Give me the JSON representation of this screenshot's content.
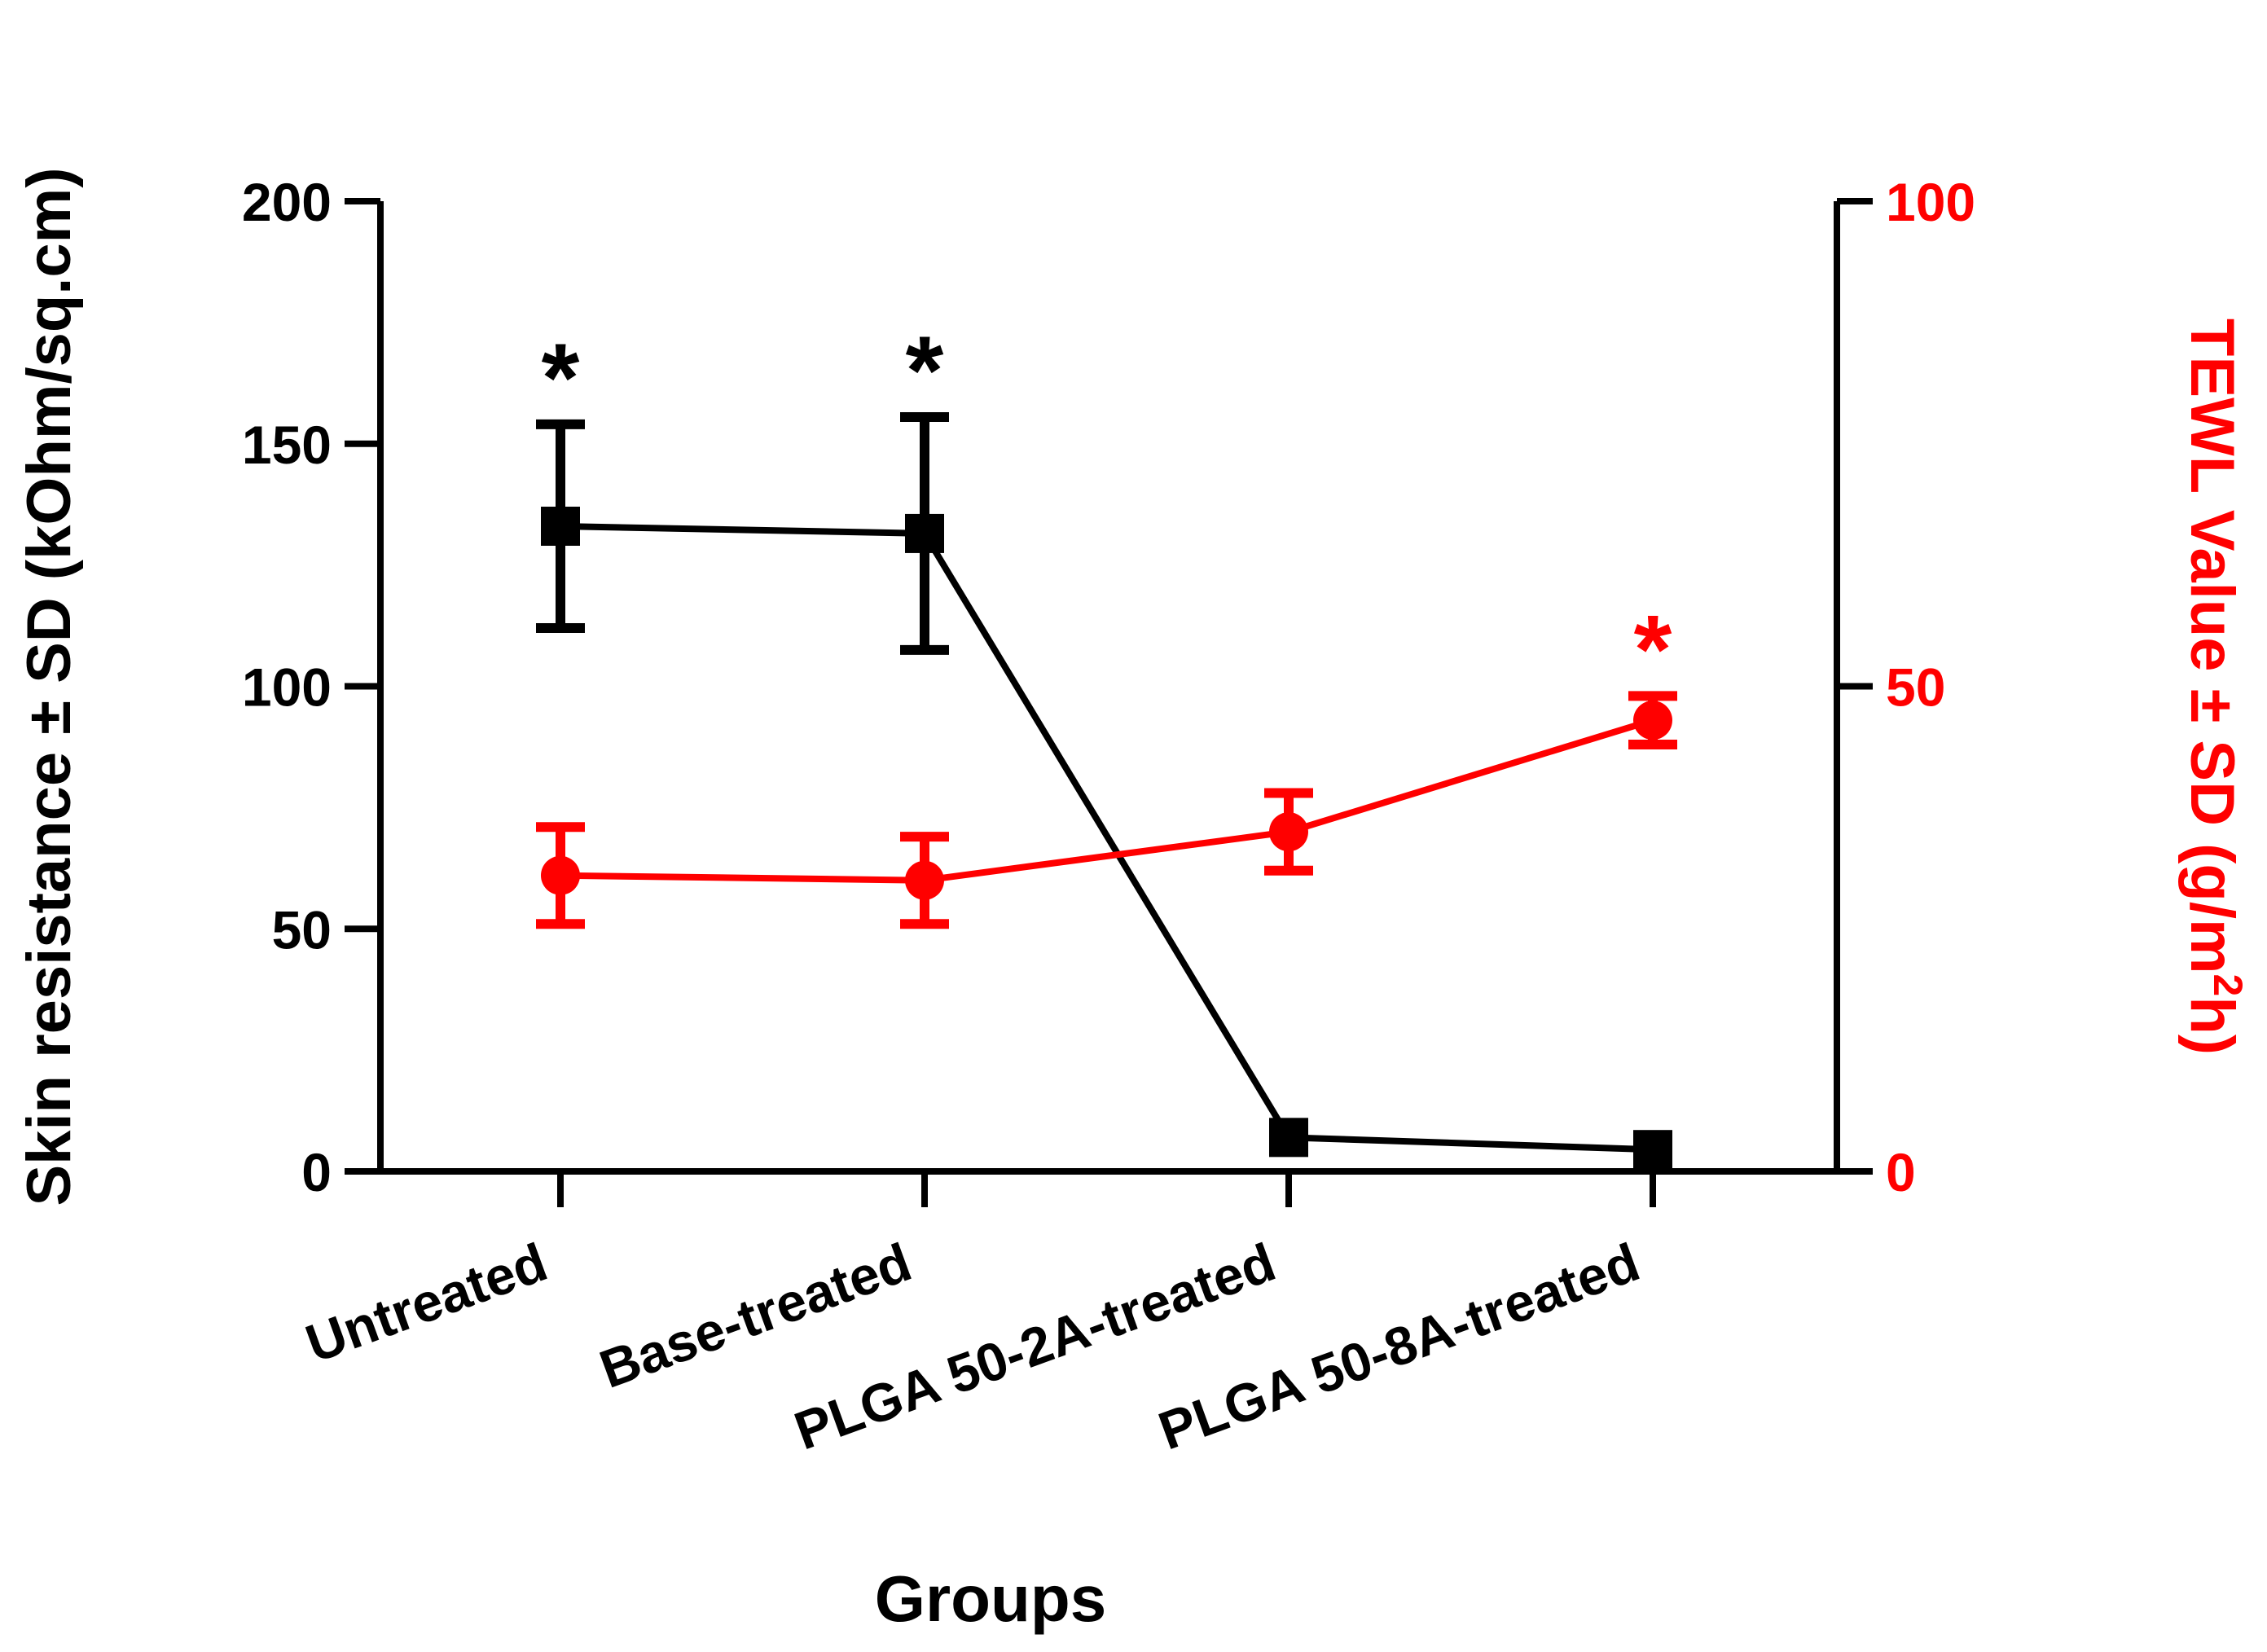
{
  "chart_data": {
    "type": "line",
    "categories": [
      "Untreated",
      "Base-treated",
      "PLGA 50-2A-treated",
      "PLGA 50-8A-treated"
    ],
    "xlabel": "Groups",
    "ylabel": "Skin resistance ± SD (kOhm/sq.cm)",
    "y2label_prefix": "TEWL Value ± SD (g/m",
    "y2label_sup": "2",
    "y2label_suffix": "h)",
    "ylim": [
      0,
      200
    ],
    "yticks": [
      "0",
      "50",
      "100",
      "150",
      "200"
    ],
    "y2lim": [
      0,
      100
    ],
    "y2ticks": [
      "0",
      "50",
      "100"
    ],
    "grid": false,
    "series": [
      {
        "name": "Skin resistance",
        "axis": "left",
        "color": "#000000",
        "marker": "square",
        "values": [
          133,
          131.5,
          7,
          4.5
        ],
        "errors": [
          21,
          24,
          null,
          null
        ],
        "significance": [
          "*",
          "*",
          "",
          ""
        ]
      },
      {
        "name": "TEWL",
        "axis": "right",
        "color": "#ff0000",
        "marker": "circle",
        "values": [
          30.5,
          30,
          35,
          46.5
        ],
        "errors": [
          5,
          4.5,
          4,
          2.5
        ],
        "significance": [
          "",
          "",
          "",
          "*"
        ]
      }
    ]
  }
}
